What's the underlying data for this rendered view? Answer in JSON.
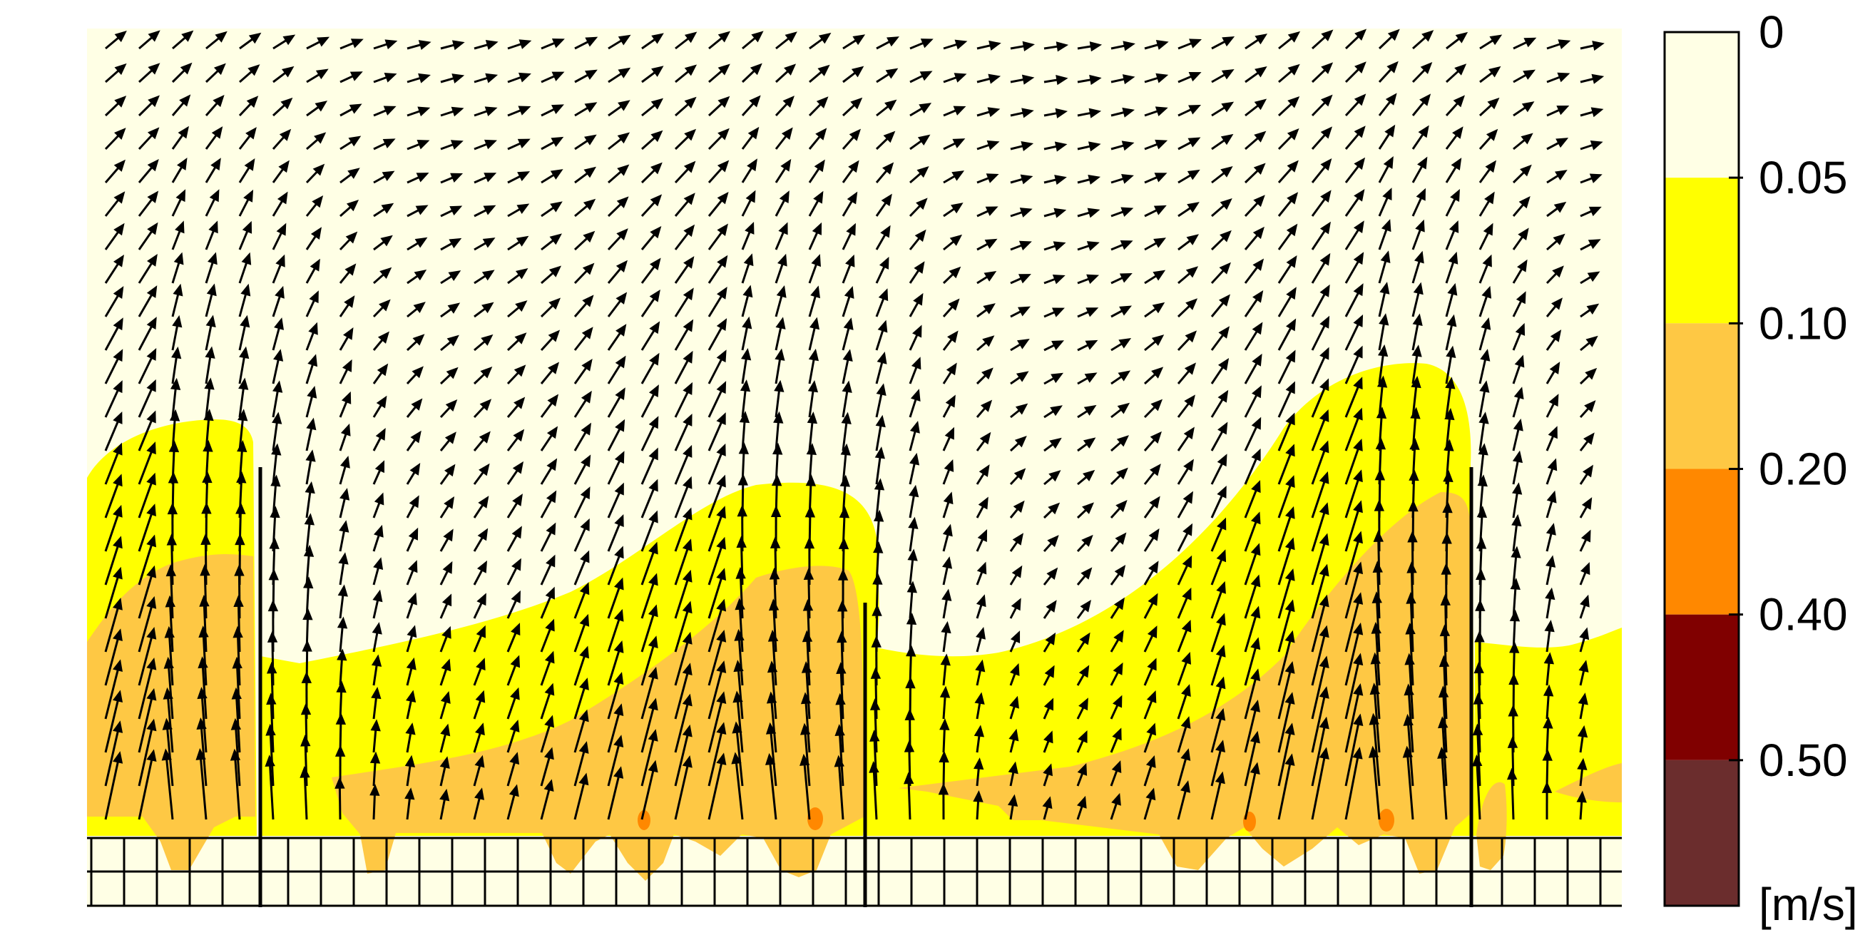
{
  "chart_data": {
    "type": "heatmap",
    "subtype": "velocity-contour-with-vector-field",
    "colorbar": {
      "unit": "[m/s]",
      "tick_labels": [
        "0",
        "0.05",
        "0.10",
        "0.20",
        "0.40",
        "0.50"
      ],
      "levels": [
        {
          "from": 0,
          "to": 0.05,
          "color": "#ffffe5"
        },
        {
          "from": 0.05,
          "to": 0.1,
          "color": "#ffff00"
        },
        {
          "from": 0.1,
          "to": 0.2,
          "color": "#fec844"
        },
        {
          "from": 0.2,
          "to": 0.4,
          "color": "#ff8800"
        },
        {
          "from": 0.4,
          "to": 0.5,
          "color": "#800000"
        },
        {
          "from": 0.5,
          "to": null,
          "color": "#6b2d2d"
        }
      ]
    },
    "background_color": "#ffffe5",
    "arrow_color": "#000000",
    "walls": 3
  }
}
